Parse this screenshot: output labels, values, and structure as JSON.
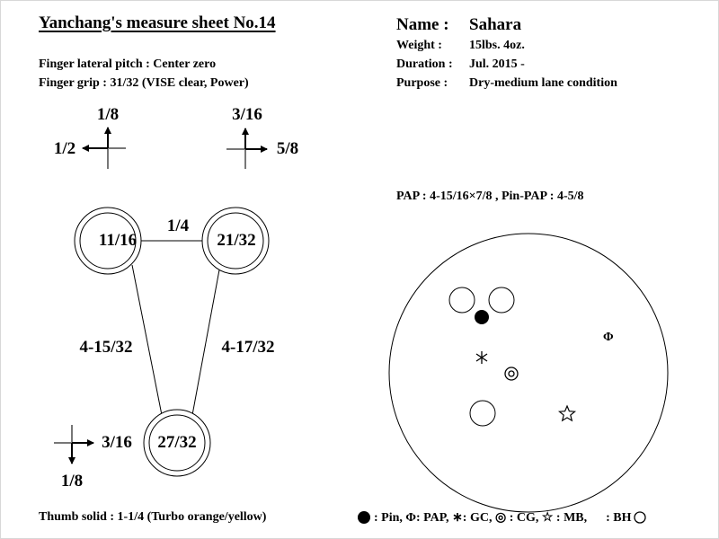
{
  "title": "Yanchang's measure sheet No.14",
  "left_info": {
    "pitch": "Finger lateral pitch : Center zero",
    "grip": "Finger grip : 31/32 (VISE clear, Power)"
  },
  "right_info": {
    "name_label": "Name :",
    "name_value": "Sahara",
    "weight_label": "Weight :",
    "weight_value": "15lbs. 4oz.",
    "duration_label": "Duration :",
    "duration_value": "Jul. 2015 -",
    "purpose_label": "Purpose :",
    "purpose_value": "Dry-medium lane condition"
  },
  "pitches": {
    "middle_forward": "1/8",
    "middle_side": "1/2",
    "ring_forward": "3/16",
    "ring_side": "5/8",
    "thumb_side": "3/16",
    "thumb_forward": "1/8"
  },
  "holes": {
    "middle": "11/16",
    "ring": "21/32",
    "thumb": "27/32",
    "bridge": "1/4",
    "span_left": "4-15/32",
    "span_right": "4-17/32"
  },
  "thumb_solid": "Thumb solid : 1-1/4 (Turbo orange/yellow)",
  "layout_text": "PAP : 4-15/16×7/8 ,   Pin-PAP : 4-5/8",
  "legend": {
    "pin": ": Pin,",
    "pap_symbol": "Φ",
    "pap": ": PAP,",
    "gc_symbol": "∗",
    "gc": ": GC,",
    "cg_symbol": "◎",
    "cg": ": CG,",
    "mb_symbol": "☆",
    "mb": ": MB,",
    "bh": ": BH"
  }
}
